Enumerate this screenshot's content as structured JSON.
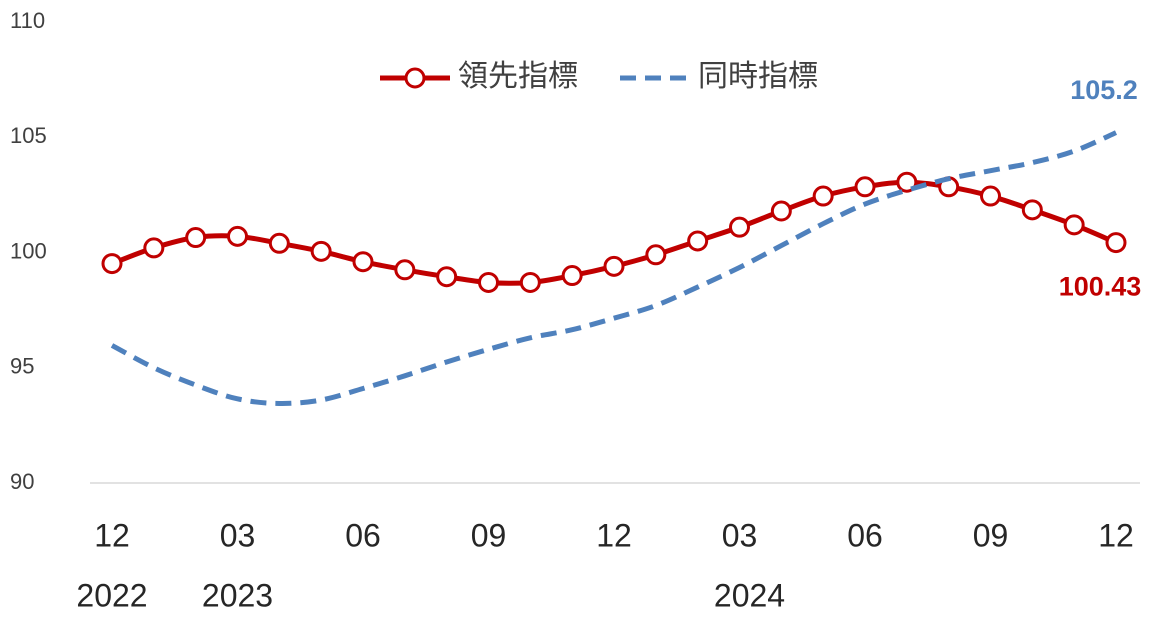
{
  "chart_data": {
    "type": "line",
    "categories": [
      "12",
      null,
      null,
      "03",
      null,
      null,
      "06",
      null,
      null,
      "09",
      null,
      null,
      "12",
      null,
      null,
      "03",
      null,
      null,
      "06",
      null,
      null,
      "09",
      null,
      null,
      "12"
    ],
    "years": [
      "2022",
      null,
      null,
      "2023",
      null,
      null,
      null,
      null,
      null,
      null,
      null,
      null,
      null,
      null,
      null,
      "2024",
      null,
      null,
      null,
      null,
      null,
      null,
      null,
      null,
      null
    ],
    "series": [
      {
        "name": "領先指標",
        "color": "#c00000",
        "marker": "circle",
        "dash": false,
        "values": [
          99.52,
          100.2,
          100.65,
          100.7,
          100.4,
          100.05,
          99.6,
          99.25,
          98.95,
          98.7,
          98.7,
          99.0,
          99.4,
          99.9,
          100.5,
          101.1,
          101.8,
          102.45,
          102.85,
          103.05,
          102.85,
          102.45,
          101.85,
          101.2,
          100.43
        ],
        "value_labels": [
          null,
          null,
          null,
          null,
          null,
          null,
          null,
          null,
          null,
          null,
          null,
          null,
          null,
          null,
          null,
          null,
          null,
          null,
          null,
          null,
          null,
          null,
          null,
          null,
          "100.43"
        ]
      },
      {
        "name": "同時指標",
        "color": "#4f81bd",
        "marker": "none",
        "dash": true,
        "values": [
          95.97,
          95.0,
          94.25,
          93.65,
          93.45,
          93.6,
          94.1,
          94.65,
          95.25,
          95.8,
          96.3,
          96.65,
          97.15,
          97.7,
          98.5,
          99.35,
          100.3,
          101.25,
          102.1,
          102.7,
          103.2,
          103.55,
          103.9,
          104.4,
          105.2
        ],
        "value_labels": [
          null,
          null,
          null,
          null,
          null,
          null,
          null,
          null,
          null,
          null,
          null,
          null,
          null,
          null,
          null,
          null,
          null,
          null,
          null,
          null,
          null,
          null,
          null,
          null,
          "105.2"
        ]
      }
    ],
    "ylim": [
      90,
      110
    ],
    "yticks": [
      90,
      95,
      100,
      105,
      110
    ],
    "grid": false,
    "legend": "top"
  }
}
